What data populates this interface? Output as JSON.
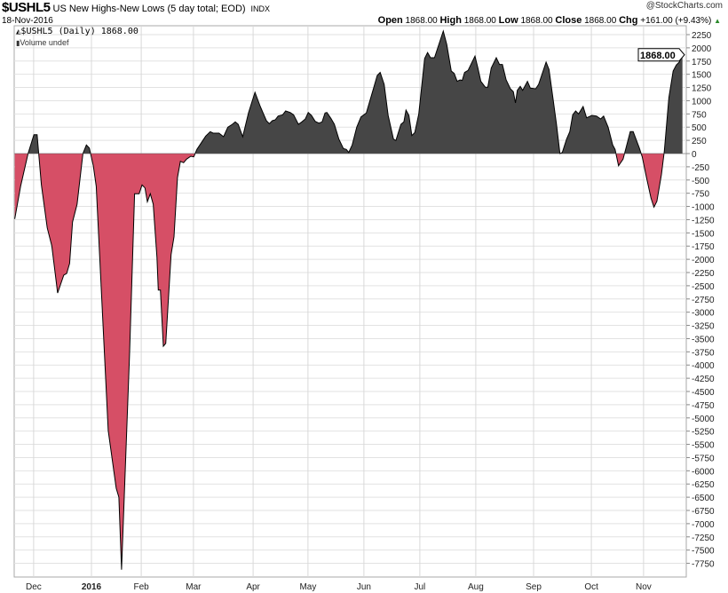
{
  "header": {
    "symbol": "$USHL5",
    "title": "US New Highs-New Lows (5 day total; EOD)",
    "exchange": "INDX",
    "copyright": "@StockCharts.com",
    "date": "18-Nov-2016",
    "open_label": "Open",
    "open": "1868.00",
    "high_label": "High",
    "high": "1868.00",
    "low_label": "Low",
    "low": "1868.00",
    "close_label": "Close",
    "close": "1868.00",
    "chg_label": "Chg",
    "chg": "+161.00 (+9.43%)",
    "chg_icon": "triangle-up-icon"
  },
  "legend": {
    "series": "$USHL5 (Daily) 1868.00",
    "volume": "Volume undef"
  },
  "colors": {
    "positive": "#464646",
    "negative": "#d64f66",
    "line": "#000000"
  },
  "chart_data": {
    "type": "area",
    "title": "$USHL5 US New Highs-New Lows (5 day total; EOD)",
    "xlabel": "",
    "ylabel": "",
    "ylim": [
      -8000,
      2400
    ],
    "yticks": [
      2250,
      2000,
      1750,
      1500,
      1250,
      1000,
      750,
      500,
      250,
      0,
      -250,
      -500,
      -750,
      -1000,
      -1250,
      -1500,
      -1750,
      -2000,
      -2250,
      -2500,
      -2750,
      -3000,
      -3250,
      -3500,
      -3750,
      -4000,
      -4250,
      -4500,
      -4750,
      -5000,
      -5250,
      -5500,
      -5750,
      -6000,
      -6250,
      -6500,
      -6750,
      -7000,
      -7250,
      -7500,
      -7750
    ],
    "xlim": [
      0,
      252
    ],
    "xticks": [
      {
        "day": 7.3,
        "label": "Dec"
      },
      {
        "day": 29,
        "label": "2016",
        "bold": true
      },
      {
        "day": 47.7,
        "label": "Feb"
      },
      {
        "day": 67.3,
        "label": "Mar"
      },
      {
        "day": 89.7,
        "label": "Apr"
      },
      {
        "day": 110.3,
        "label": "May"
      },
      {
        "day": 131.3,
        "label": "Jun"
      },
      {
        "day": 152.3,
        "label": "Jul"
      },
      {
        "day": 173.3,
        "label": "Aug"
      },
      {
        "day": 195,
        "label": "Sep"
      },
      {
        "day": 216.7,
        "label": "Oct"
      },
      {
        "day": 236.3,
        "label": "Nov"
      }
    ],
    "last_value_label": "1868.00",
    "grid": true,
    "points": [
      [
        0.2,
        -1238
      ],
      [
        2.4,
        -620
      ],
      [
        5.2,
        0
      ],
      [
        7.4,
        358
      ],
      [
        8.6,
        358
      ],
      [
        10.2,
        -590
      ],
      [
        12.4,
        -1406
      ],
      [
        14.1,
        -1742
      ],
      [
        16.3,
        -2638
      ],
      [
        18.6,
        -2300
      ],
      [
        19.7,
        -2268
      ],
      [
        20.8,
        -2078
      ],
      [
        21.9,
        -1294
      ],
      [
        23.6,
        -958
      ],
      [
        25.8,
        0
      ],
      [
        27.1,
        163
      ],
      [
        28.2,
        106
      ],
      [
        29.7,
        -230
      ],
      [
        30.8,
        -620
      ],
      [
        35.3,
        -5240
      ],
      [
        38.3,
        -6330
      ],
      [
        39.3,
        -6500
      ],
      [
        40.3,
        -7870
      ],
      [
        43.3,
        -3810
      ],
      [
        45.2,
        -761
      ],
      [
        46.9,
        -761
      ],
      [
        48,
        -593
      ],
      [
        49.1,
        -650
      ],
      [
        50,
        -912
      ],
      [
        51.1,
        -761
      ],
      [
        52.2,
        -958
      ],
      [
        53.6,
        -1966
      ],
      [
        54.1,
        -2582
      ],
      [
        54.9,
        -2582
      ],
      [
        56,
        -3646
      ],
      [
        56.9,
        -3590
      ],
      [
        58.9,
        -1910
      ],
      [
        60,
        -1574
      ],
      [
        61.3,
        -454
      ],
      [
        62.4,
        -146
      ],
      [
        63.6,
        -173
      ],
      [
        64.7,
        -106
      ],
      [
        66.3,
        -50
      ],
      [
        67.4,
        -62
      ],
      [
        68.6,
        79
      ],
      [
        69.7,
        163
      ],
      [
        71.9,
        331
      ],
      [
        73.6,
        414
      ],
      [
        74.7,
        386
      ],
      [
        76.9,
        386
      ],
      [
        78.6,
        319
      ],
      [
        80.2,
        499
      ],
      [
        81.9,
        554
      ],
      [
        83,
        600
      ],
      [
        84.1,
        554
      ],
      [
        85.8,
        319
      ],
      [
        88,
        778
      ],
      [
        90.4,
        1159
      ],
      [
        92.4,
        890
      ],
      [
        94.7,
        622
      ],
      [
        95.8,
        566
      ],
      [
        96.9,
        622
      ],
      [
        98,
        638
      ],
      [
        99.1,
        711
      ],
      [
        100.8,
        734
      ],
      [
        101.9,
        806
      ],
      [
        103.6,
        778
      ],
      [
        104.9,
        734
      ],
      [
        106.7,
        554
      ],
      [
        108,
        600
      ],
      [
        109.3,
        655
      ],
      [
        110.4,
        778
      ],
      [
        111.6,
        722
      ],
      [
        113,
        610
      ],
      [
        114.4,
        576
      ],
      [
        115.6,
        600
      ],
      [
        116.7,
        767
      ],
      [
        117.4,
        778
      ],
      [
        118.9,
        667
      ],
      [
        120.2,
        554
      ],
      [
        121.9,
        274
      ],
      [
        123.6,
        96
      ],
      [
        124.7,
        79
      ],
      [
        125.6,
        22
      ],
      [
        126.9,
        163
      ],
      [
        128.6,
        499
      ],
      [
        130.2,
        694
      ],
      [
        132.2,
        767
      ],
      [
        134.7,
        1198
      ],
      [
        136.3,
        1478
      ],
      [
        137.4,
        1534
      ],
      [
        138.9,
        1310
      ],
      [
        140.4,
        722
      ],
      [
        142.4,
        274
      ],
      [
        143.3,
        247
      ],
      [
        145.2,
        554
      ],
      [
        146.3,
        600
      ],
      [
        147.1,
        823
      ],
      [
        148.2,
        722
      ],
      [
        149.3,
        341
      ],
      [
        150.4,
        398
      ],
      [
        151.9,
        751
      ],
      [
        154.1,
        1798
      ],
      [
        155.2,
        1910
      ],
      [
        156.3,
        1814
      ],
      [
        157.8,
        1814
      ],
      [
        161.1,
        2318
      ],
      [
        162.4,
        2066
      ],
      [
        164.1,
        1562
      ],
      [
        165.2,
        1517
      ],
      [
        166.3,
        1366
      ],
      [
        167.4,
        1394
      ],
      [
        168.2,
        1383
      ],
      [
        169.1,
        1534
      ],
      [
        170.4,
        1574
      ],
      [
        173,
        1843
      ],
      [
        174.1,
        1618
      ],
      [
        175.2,
        1366
      ],
      [
        176.9,
        1254
      ],
      [
        177.8,
        1254
      ],
      [
        179.1,
        1618
      ],
      [
        181,
        1814
      ],
      [
        182.2,
        1685
      ],
      [
        183.3,
        1685
      ],
      [
        184.7,
        1394
      ],
      [
        186.3,
        1226
      ],
      [
        187.4,
        1170
      ],
      [
        188.2,
        958
      ],
      [
        188.9,
        1198
      ],
      [
        190,
        1271
      ],
      [
        190.9,
        1198
      ],
      [
        192.7,
        1366
      ],
      [
        193.8,
        1238
      ],
      [
        195.8,
        1226
      ],
      [
        196.9,
        1310
      ],
      [
        199.7,
        1730
      ],
      [
        200.8,
        1590
      ],
      [
        202.4,
        1002
      ],
      [
        203.6,
        554
      ],
      [
        204.9,
        0
      ],
      [
        205.8,
        22
      ],
      [
        207.4,
        274
      ],
      [
        208.6,
        414
      ],
      [
        209.7,
        734
      ],
      [
        210.8,
        806
      ],
      [
        211.9,
        751
      ],
      [
        213.6,
        890
      ],
      [
        214.9,
        677
      ],
      [
        216.9,
        722
      ],
      [
        218.6,
        711
      ],
      [
        220.2,
        655
      ],
      [
        221.3,
        711
      ],
      [
        223,
        499
      ],
      [
        224.7,
        163
      ],
      [
        225.6,
        79
      ],
      [
        226.9,
        -230
      ],
      [
        228.6,
        -106
      ],
      [
        229.7,
        106
      ],
      [
        231.3,
        414
      ],
      [
        232.4,
        414
      ],
      [
        234.7,
        106
      ],
      [
        235.8,
        -62
      ],
      [
        237.4,
        -454
      ],
      [
        239.1,
        -845
      ],
      [
        240.2,
        -1013
      ],
      [
        241.3,
        -902
      ],
      [
        243,
        -398
      ],
      [
        244.1,
        50
      ],
      [
        245.8,
        1058
      ],
      [
        247.4,
        1562
      ],
      [
        248.6,
        1675
      ],
      [
        249.7,
        1730
      ],
      [
        250.6,
        1853
      ],
      [
        250.9,
        1868
      ]
    ]
  }
}
